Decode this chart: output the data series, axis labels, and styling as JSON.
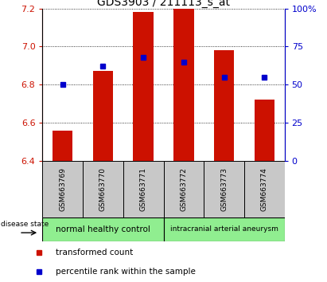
{
  "title": "GDS3903 / 211113_s_at",
  "samples": [
    "GSM663769",
    "GSM663770",
    "GSM663771",
    "GSM663772",
    "GSM663773",
    "GSM663774"
  ],
  "transformed_counts": [
    6.56,
    6.87,
    7.18,
    7.2,
    6.98,
    6.72
  ],
  "percentile_ranks": [
    50,
    62,
    68,
    65,
    55,
    55
  ],
  "y_min": 6.4,
  "y_max": 7.2,
  "y_ticks": [
    6.4,
    6.6,
    6.8,
    7.0,
    7.2
  ],
  "y2_ticks": [
    0,
    25,
    50,
    75,
    100
  ],
  "bar_color": "#cc1100",
  "dot_color": "#0000cc",
  "bar_width": 0.5,
  "group_box_color": "#c8c8c8",
  "group1_label": "normal healthy control",
  "group2_label": "intracranial arterial aneurysm",
  "group_color": "#90ee90",
  "title_fontsize": 10,
  "tick_fontsize": 8,
  "left_tick_color": "#cc1100",
  "right_tick_color": "#0000cc"
}
